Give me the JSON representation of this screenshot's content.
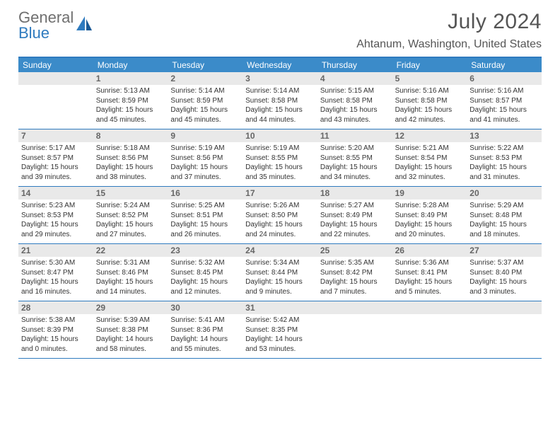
{
  "logo": {
    "general": "General",
    "blue": "Blue"
  },
  "title": "July 2024",
  "location": "Ahtanum, Washington, United States",
  "colors": {
    "header_bg": "#3b8bc9",
    "header_border": "#2f7bbf",
    "daynum_bg": "#e9e9e9",
    "text": "#333333",
    "title_text": "#555555"
  },
  "day_names": [
    "Sunday",
    "Monday",
    "Tuesday",
    "Wednesday",
    "Thursday",
    "Friday",
    "Saturday"
  ],
  "weeks": [
    [
      {
        "num": "",
        "sunrise": "",
        "sunset": "",
        "daylight": ""
      },
      {
        "num": "1",
        "sunrise": "Sunrise: 5:13 AM",
        "sunset": "Sunset: 8:59 PM",
        "daylight": "Daylight: 15 hours and 45 minutes."
      },
      {
        "num": "2",
        "sunrise": "Sunrise: 5:14 AM",
        "sunset": "Sunset: 8:59 PM",
        "daylight": "Daylight: 15 hours and 45 minutes."
      },
      {
        "num": "3",
        "sunrise": "Sunrise: 5:14 AM",
        "sunset": "Sunset: 8:58 PM",
        "daylight": "Daylight: 15 hours and 44 minutes."
      },
      {
        "num": "4",
        "sunrise": "Sunrise: 5:15 AM",
        "sunset": "Sunset: 8:58 PM",
        "daylight": "Daylight: 15 hours and 43 minutes."
      },
      {
        "num": "5",
        "sunrise": "Sunrise: 5:16 AM",
        "sunset": "Sunset: 8:58 PM",
        "daylight": "Daylight: 15 hours and 42 minutes."
      },
      {
        "num": "6",
        "sunrise": "Sunrise: 5:16 AM",
        "sunset": "Sunset: 8:57 PM",
        "daylight": "Daylight: 15 hours and 41 minutes."
      }
    ],
    [
      {
        "num": "7",
        "sunrise": "Sunrise: 5:17 AM",
        "sunset": "Sunset: 8:57 PM",
        "daylight": "Daylight: 15 hours and 39 minutes."
      },
      {
        "num": "8",
        "sunrise": "Sunrise: 5:18 AM",
        "sunset": "Sunset: 8:56 PM",
        "daylight": "Daylight: 15 hours and 38 minutes."
      },
      {
        "num": "9",
        "sunrise": "Sunrise: 5:19 AM",
        "sunset": "Sunset: 8:56 PM",
        "daylight": "Daylight: 15 hours and 37 minutes."
      },
      {
        "num": "10",
        "sunrise": "Sunrise: 5:19 AM",
        "sunset": "Sunset: 8:55 PM",
        "daylight": "Daylight: 15 hours and 35 minutes."
      },
      {
        "num": "11",
        "sunrise": "Sunrise: 5:20 AM",
        "sunset": "Sunset: 8:55 PM",
        "daylight": "Daylight: 15 hours and 34 minutes."
      },
      {
        "num": "12",
        "sunrise": "Sunrise: 5:21 AM",
        "sunset": "Sunset: 8:54 PM",
        "daylight": "Daylight: 15 hours and 32 minutes."
      },
      {
        "num": "13",
        "sunrise": "Sunrise: 5:22 AM",
        "sunset": "Sunset: 8:53 PM",
        "daylight": "Daylight: 15 hours and 31 minutes."
      }
    ],
    [
      {
        "num": "14",
        "sunrise": "Sunrise: 5:23 AM",
        "sunset": "Sunset: 8:53 PM",
        "daylight": "Daylight: 15 hours and 29 minutes."
      },
      {
        "num": "15",
        "sunrise": "Sunrise: 5:24 AM",
        "sunset": "Sunset: 8:52 PM",
        "daylight": "Daylight: 15 hours and 27 minutes."
      },
      {
        "num": "16",
        "sunrise": "Sunrise: 5:25 AM",
        "sunset": "Sunset: 8:51 PM",
        "daylight": "Daylight: 15 hours and 26 minutes."
      },
      {
        "num": "17",
        "sunrise": "Sunrise: 5:26 AM",
        "sunset": "Sunset: 8:50 PM",
        "daylight": "Daylight: 15 hours and 24 minutes."
      },
      {
        "num": "18",
        "sunrise": "Sunrise: 5:27 AM",
        "sunset": "Sunset: 8:49 PM",
        "daylight": "Daylight: 15 hours and 22 minutes."
      },
      {
        "num": "19",
        "sunrise": "Sunrise: 5:28 AM",
        "sunset": "Sunset: 8:49 PM",
        "daylight": "Daylight: 15 hours and 20 minutes."
      },
      {
        "num": "20",
        "sunrise": "Sunrise: 5:29 AM",
        "sunset": "Sunset: 8:48 PM",
        "daylight": "Daylight: 15 hours and 18 minutes."
      }
    ],
    [
      {
        "num": "21",
        "sunrise": "Sunrise: 5:30 AM",
        "sunset": "Sunset: 8:47 PM",
        "daylight": "Daylight: 15 hours and 16 minutes."
      },
      {
        "num": "22",
        "sunrise": "Sunrise: 5:31 AM",
        "sunset": "Sunset: 8:46 PM",
        "daylight": "Daylight: 15 hours and 14 minutes."
      },
      {
        "num": "23",
        "sunrise": "Sunrise: 5:32 AM",
        "sunset": "Sunset: 8:45 PM",
        "daylight": "Daylight: 15 hours and 12 minutes."
      },
      {
        "num": "24",
        "sunrise": "Sunrise: 5:34 AM",
        "sunset": "Sunset: 8:44 PM",
        "daylight": "Daylight: 15 hours and 9 minutes."
      },
      {
        "num": "25",
        "sunrise": "Sunrise: 5:35 AM",
        "sunset": "Sunset: 8:42 PM",
        "daylight": "Daylight: 15 hours and 7 minutes."
      },
      {
        "num": "26",
        "sunrise": "Sunrise: 5:36 AM",
        "sunset": "Sunset: 8:41 PM",
        "daylight": "Daylight: 15 hours and 5 minutes."
      },
      {
        "num": "27",
        "sunrise": "Sunrise: 5:37 AM",
        "sunset": "Sunset: 8:40 PM",
        "daylight": "Daylight: 15 hours and 3 minutes."
      }
    ],
    [
      {
        "num": "28",
        "sunrise": "Sunrise: 5:38 AM",
        "sunset": "Sunset: 8:39 PM",
        "daylight": "Daylight: 15 hours and 0 minutes."
      },
      {
        "num": "29",
        "sunrise": "Sunrise: 5:39 AM",
        "sunset": "Sunset: 8:38 PM",
        "daylight": "Daylight: 14 hours and 58 minutes."
      },
      {
        "num": "30",
        "sunrise": "Sunrise: 5:41 AM",
        "sunset": "Sunset: 8:36 PM",
        "daylight": "Daylight: 14 hours and 55 minutes."
      },
      {
        "num": "31",
        "sunrise": "Sunrise: 5:42 AM",
        "sunset": "Sunset: 8:35 PM",
        "daylight": "Daylight: 14 hours and 53 minutes."
      },
      {
        "num": "",
        "sunrise": "",
        "sunset": "",
        "daylight": ""
      },
      {
        "num": "",
        "sunrise": "",
        "sunset": "",
        "daylight": ""
      },
      {
        "num": "",
        "sunrise": "",
        "sunset": "",
        "daylight": ""
      }
    ]
  ]
}
